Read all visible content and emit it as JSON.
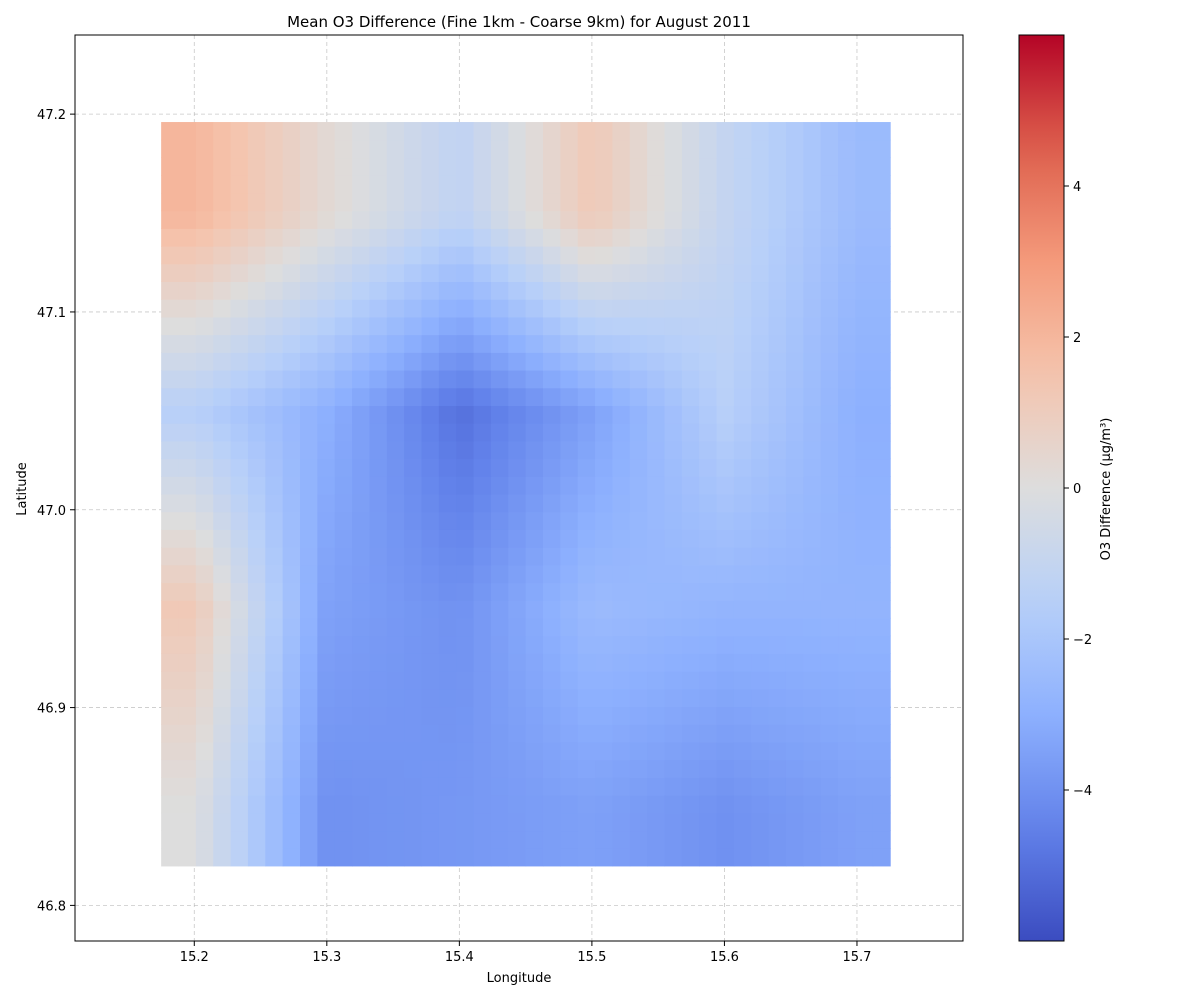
{
  "chart_data": {
    "type": "heatmap",
    "title": "Mean O3 Difference (Fine 1km - Coarse 9km) for August 2011",
    "xlabel": "Longitude",
    "ylabel": "Latitude",
    "colorbar_label": "O3 Difference (µg/m³)",
    "colormap": "coolwarm",
    "xlim": [
      15.11,
      15.78
    ],
    "ylim": [
      46.782,
      47.24
    ],
    "data_extent": {
      "lon": [
        15.175,
        15.725
      ],
      "lat": [
        46.82,
        47.196
      ]
    },
    "grid": true,
    "x_ticks": [
      {
        "value": 15.2,
        "label": "15.2"
      },
      {
        "value": 15.3,
        "label": "15.3"
      },
      {
        "value": 15.4,
        "label": "15.4"
      },
      {
        "value": 15.5,
        "label": "15.5"
      },
      {
        "value": 15.6,
        "label": "15.6"
      },
      {
        "value": 15.7,
        "label": "15.7"
      }
    ],
    "y_ticks": [
      {
        "value": 46.8,
        "label": "46.8"
      },
      {
        "value": 46.9,
        "label": "46.9"
      },
      {
        "value": 47.0,
        "label": "47.0"
      },
      {
        "value": 47.1,
        "label": "47.1"
      },
      {
        "value": 47.2,
        "label": "47.2"
      }
    ],
    "colorbar": {
      "vmin": -6.0,
      "vmax": 6.0,
      "ticks": [
        {
          "value": -4,
          "label": "−4"
        },
        {
          "value": -2,
          "label": "−2"
        },
        {
          "value": 0,
          "label": "0"
        },
        {
          "value": 2,
          "label": "2"
        },
        {
          "value": 4,
          "label": "4"
        }
      ]
    },
    "grid_values": {
      "lon": [
        15.2,
        15.3,
        15.4,
        15.5,
        15.6,
        15.7
      ],
      "lat": [
        46.85,
        46.95,
        47.05,
        47.15
      ],
      "values": [
        [
          0.0,
          -4.0,
          -3.8,
          -3.5,
          -4.0,
          -3.5
        ],
        [
          1.2,
          -3.5,
          -4.0,
          -2.5,
          -2.8,
          -2.8
        ],
        [
          -1.5,
          -3.0,
          -5.0,
          -3.5,
          -1.5,
          -3.0
        ],
        [
          2.0,
          0.3,
          -1.2,
          1.2,
          -1.0,
          -2.5
        ]
      ]
    }
  }
}
